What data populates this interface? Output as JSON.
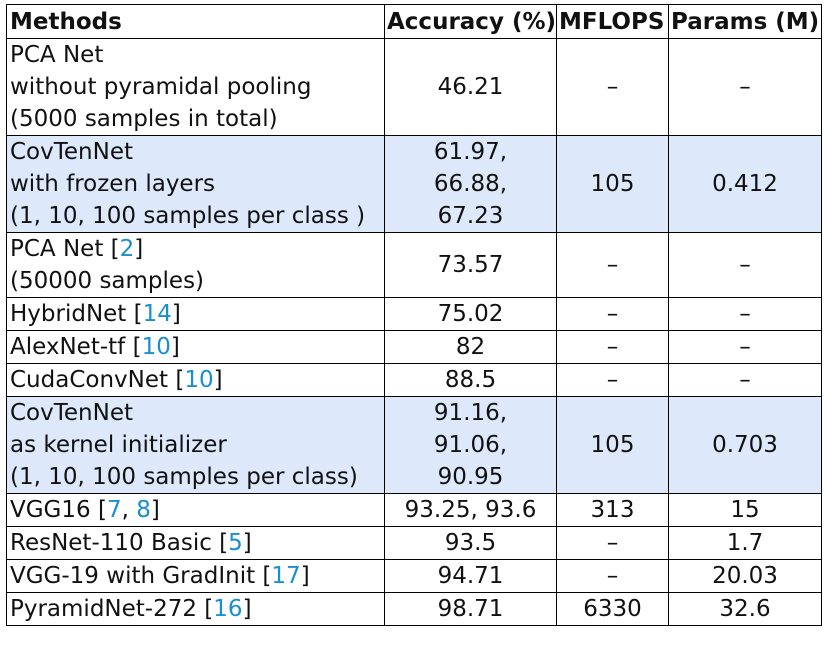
{
  "table": {
    "headers": {
      "methods": "Methods",
      "accuracy": "Accuracy (%)",
      "mflops": "MFLOPS",
      "params": "Params (M)"
    },
    "rows": [
      {
        "method_lines": [
          "PCA Net",
          "without pyramidal pooling",
          "(5000 samples in total)"
        ],
        "accuracy_lines": [
          "46.21"
        ],
        "mflops": "–",
        "params": "–"
      },
      {
        "method_lines": [
          "CovTenNet",
          "with frozen layers",
          "(1, 10, 100 samples per class )"
        ],
        "accuracy_lines": [
          "61.97,",
          "66.88,",
          "67.23"
        ],
        "mflops": "105",
        "params": "0.412",
        "highlighted": true
      },
      {
        "method_lines": [
          "PCA Net",
          "(50000 samples)"
        ],
        "citation": "2",
        "accuracy_lines": [
          "73.57"
        ],
        "mflops": "–",
        "params": "–"
      },
      {
        "method": "HybridNet",
        "citation": "14",
        "accuracy": "75.02",
        "mflops": "–",
        "params": "–"
      },
      {
        "method": "AlexNet-tf",
        "citation": "10",
        "accuracy": "82",
        "mflops": "–",
        "params": "–"
      },
      {
        "method": "CudaConvNet",
        "citation": "10",
        "accuracy": "88.5",
        "mflops": "–",
        "params": "–"
      },
      {
        "method_lines": [
          "CovTenNet",
          "as kernel initializer",
          "(1, 10, 100 samples per class)"
        ],
        "accuracy_lines": [
          "91.16,",
          "91.06,",
          "90.95"
        ],
        "mflops": "105",
        "params": "0.703",
        "highlighted": true
      },
      {
        "method": "VGG16",
        "citation_a": "7",
        "citation_b": "8",
        "accuracy": "93.25, 93.6",
        "mflops": "313",
        "params": "15"
      },
      {
        "method": "ResNet-110 Basic",
        "citation": "5",
        "accuracy": "93.5",
        "mflops": "–",
        "params": "1.7"
      },
      {
        "method": "VGG-19 with GradInit",
        "citation": "17",
        "accuracy": "94.71",
        "mflops": "–",
        "params": "20.03"
      },
      {
        "method": "PyramidNet-272",
        "citation": "16",
        "accuracy": "98.71",
        "mflops": "6330",
        "params": "32.6"
      }
    ]
  }
}
